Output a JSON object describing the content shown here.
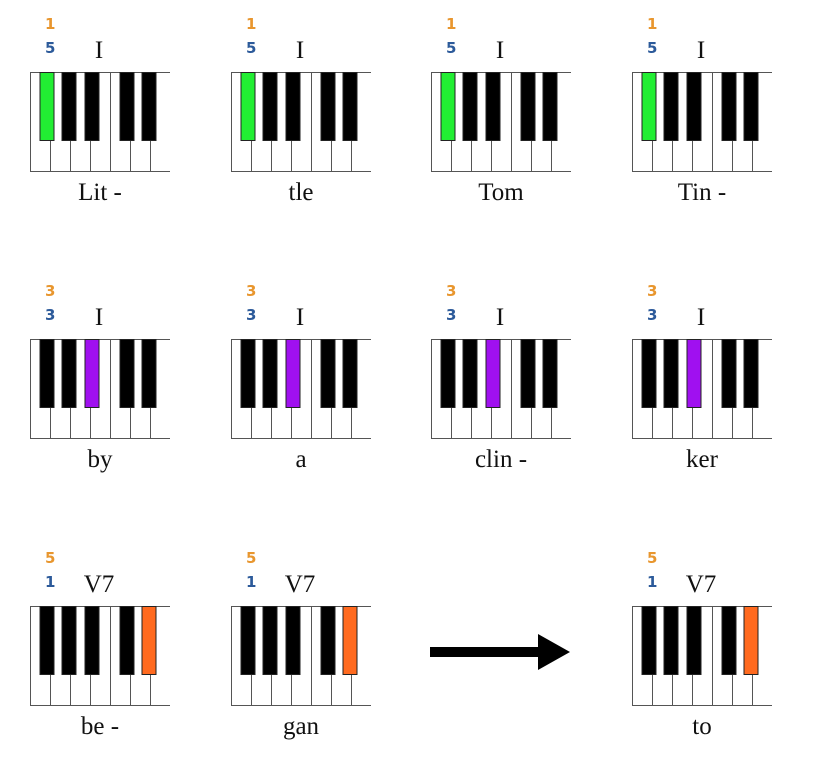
{
  "colors": {
    "green": "#22ee33",
    "purple": "#a010f0",
    "orange": "#ff6a1f",
    "fingering_right_hand": "#e8962e",
    "fingering_left_hand": "#2c5a9a",
    "black_key": "#000000",
    "white_key": "#ffffff"
  },
  "steps": [
    {
      "finger_top": "1",
      "finger_bottom": "5",
      "chord": "I",
      "syllable": "Lit -",
      "highlight_key": "C#",
      "highlight_color": "green"
    },
    {
      "finger_top": "1",
      "finger_bottom": "5",
      "chord": "I",
      "syllable": "tle",
      "highlight_key": "C#",
      "highlight_color": "green"
    },
    {
      "finger_top": "1",
      "finger_bottom": "5",
      "chord": "I",
      "syllable": "Tom",
      "highlight_key": "C#",
      "highlight_color": "green"
    },
    {
      "finger_top": "1",
      "finger_bottom": "5",
      "chord": "I",
      "syllable": "Tin -",
      "highlight_key": "C#",
      "highlight_color": "green"
    },
    {
      "finger_top": "3",
      "finger_bottom": "3",
      "chord": "I",
      "syllable": "by",
      "highlight_key": "F#",
      "highlight_color": "purple"
    },
    {
      "finger_top": "3",
      "finger_bottom": "3",
      "chord": "I",
      "syllable": "a",
      "highlight_key": "F#",
      "highlight_color": "purple"
    },
    {
      "finger_top": "3",
      "finger_bottom": "3",
      "chord": "I",
      "syllable": "clin -",
      "highlight_key": "F#",
      "highlight_color": "purple"
    },
    {
      "finger_top": "3",
      "finger_bottom": "3",
      "chord": "I",
      "syllable": "ker",
      "highlight_key": "F#",
      "highlight_color": "purple"
    },
    {
      "finger_top": "5",
      "finger_bottom": "1",
      "chord": "V7",
      "syllable": "be -",
      "highlight_key": "A#",
      "highlight_color": "orange"
    },
    {
      "finger_top": "5",
      "finger_bottom": "1",
      "chord": "V7",
      "syllable": "gan",
      "highlight_key": "A#",
      "highlight_color": "orange"
    },
    {
      "finger_top": "5",
      "finger_bottom": "1",
      "chord": "V7",
      "syllable": "to",
      "highlight_key": "A#",
      "highlight_color": "orange"
    }
  ]
}
